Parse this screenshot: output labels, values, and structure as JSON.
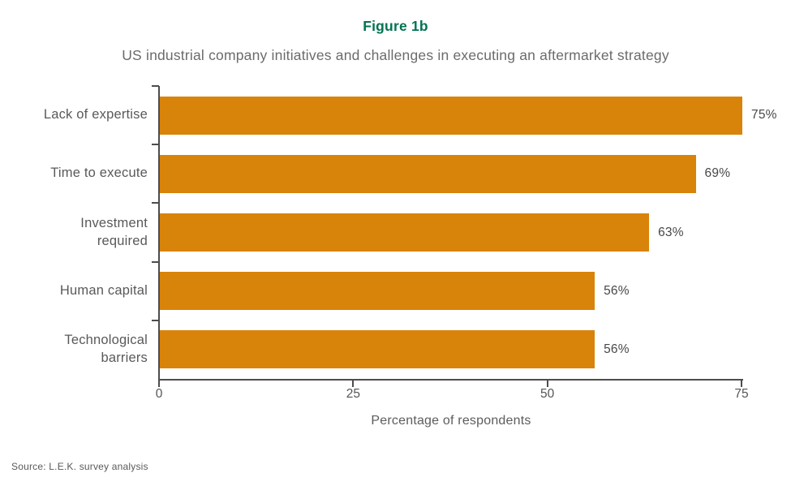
{
  "figure": {
    "label": "Figure 1b",
    "subtitle": "US industrial company initiatives and challenges in executing an aftermarket strategy"
  },
  "chart_data": {
    "type": "bar",
    "orientation": "horizontal",
    "title": "Figure 1b",
    "subtitle": "US industrial company initiatives and challenges in executing an aftermarket strategy",
    "categories": [
      "Lack of expertise",
      "Time to execute",
      "Investment required",
      "Human capital",
      "Technological barriers"
    ],
    "category_lines": [
      [
        "Lack of expertise"
      ],
      [
        "Time to execute"
      ],
      [
        "Investment",
        "required"
      ],
      [
        "Human capital"
      ],
      [
        "Technological",
        "barriers"
      ]
    ],
    "values": [
      75,
      69,
      63,
      56,
      56
    ],
    "value_labels": [
      "75%",
      "69%",
      "63%",
      "56%",
      "56%"
    ],
    "xlabel": "Percentage of respondents",
    "ylabel": "",
    "x_ticks": [
      0,
      25,
      50,
      75
    ],
    "x_tick_labels": [
      "0",
      "25",
      "50",
      "75"
    ],
    "xlim": [
      0,
      75
    ],
    "grid": false,
    "legend_position": "none",
    "bar_color": "#D8830A"
  },
  "colors": {
    "title_green": "#007351",
    "bar_orange": "#D8830A",
    "axis_gray": "#4d4d4d",
    "text_gray": "#6b6b6b"
  },
  "source": {
    "text": "Source: L.E.K. survey analysis"
  }
}
